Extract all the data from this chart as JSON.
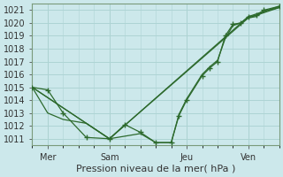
{
  "xlabel": "Pression niveau de la mer( hPa )",
  "background_color": "#cce8eb",
  "grid_color": "#aed4d4",
  "line_color": "#2d6a2d",
  "ylim": [
    1010.5,
    1021.5
  ],
  "yticks": [
    1011,
    1012,
    1013,
    1014,
    1015,
    1016,
    1017,
    1018,
    1019,
    1020,
    1021
  ],
  "xlim": [
    0,
    96
  ],
  "day_labels": [
    "Mer",
    "Sam",
    "Jeu",
    "Ven"
  ],
  "day_ticks": [
    6,
    30,
    60,
    84
  ],
  "vlines": [
    6,
    30,
    60,
    84
  ],
  "series1_x": [
    0,
    6,
    12,
    21,
    30,
    36,
    42,
    48,
    54,
    57,
    60,
    66,
    69,
    72,
    75,
    78,
    81,
    84,
    87,
    90,
    96
  ],
  "series1_y": [
    1015.0,
    1014.8,
    1013.0,
    1011.1,
    1011.0,
    1012.1,
    1011.5,
    1010.7,
    1010.7,
    1012.8,
    1014.0,
    1015.9,
    1016.5,
    1017.0,
    1019.0,
    1019.9,
    1020.0,
    1020.5,
    1020.6,
    1021.0,
    1021.3
  ],
  "series2_x": [
    0,
    6,
    12,
    21,
    30,
    36,
    42,
    48,
    54,
    57,
    60,
    66,
    69,
    72,
    75,
    78,
    81,
    84,
    87,
    90,
    96
  ],
  "series2_y": [
    1015.0,
    1013.0,
    1012.5,
    1012.2,
    1011.0,
    1011.2,
    1011.4,
    1010.7,
    1010.7,
    1012.9,
    1014.1,
    1016.0,
    1016.6,
    1017.1,
    1018.8,
    1019.8,
    1020.0,
    1020.4,
    1020.5,
    1020.9,
    1021.2
  ],
  "series3_x": [
    0,
    30,
    84,
    96
  ],
  "series3_y": [
    1015.0,
    1011.0,
    1020.5,
    1021.3
  ],
  "series4_x": [
    0,
    30,
    84,
    96
  ],
  "series4_y": [
    1015.0,
    1011.0,
    1020.4,
    1021.2
  ],
  "xlabel_fontsize": 8,
  "tick_fontsize": 7
}
